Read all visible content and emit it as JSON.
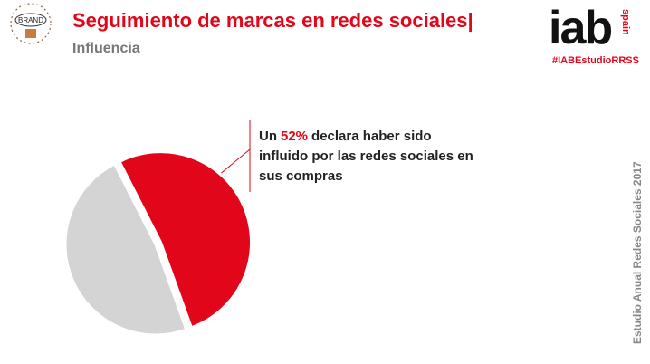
{
  "brand": "BRAND",
  "logo": {
    "text": "iab",
    "country": "spain",
    "hashtag": "#IABEstudioRRSS"
  },
  "side_note": "Estudio Anual Redes Sociales 2017",
  "chart_data": {
    "type": "pie",
    "title": "Seguimiento de marcas en redes sociales|",
    "subtitle": "Influencia",
    "values": [
      52,
      48
    ],
    "value_labels": [
      "52%",
      null
    ],
    "colors": [
      "#e2061b",
      "#d4d4d4"
    ],
    "annotation": {
      "before": "Un",
      "after": "declara haber sido influido por las redes sociales en sus compras"
    }
  }
}
